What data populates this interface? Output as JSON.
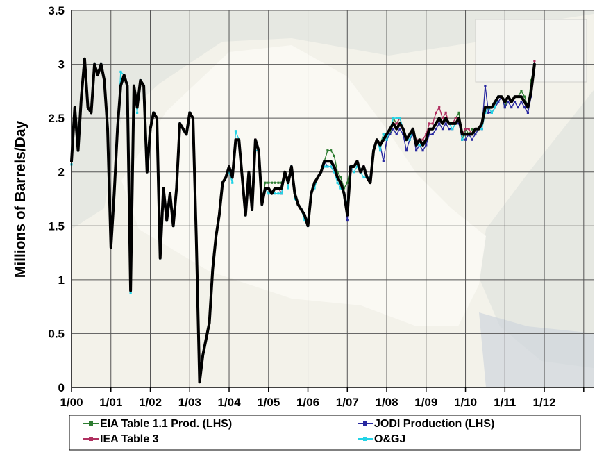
{
  "chart_data": {
    "type": "line",
    "title": "",
    "xlabel": "",
    "ylabel": "Millions of Barrels/Day",
    "ylim": [
      0,
      3.5
    ],
    "yticks": [
      "0",
      "0.5",
      "1",
      "1.5",
      "2",
      "2.5",
      "3",
      "3.5"
    ],
    "xticks": [
      "1/00",
      "1/01",
      "1/02",
      "1/03",
      "1/04",
      "1/05",
      "1/06",
      "1/07",
      "1/08",
      "1/09",
      "1/10",
      "1/11",
      "1/12"
    ],
    "xlim_years": [
      2000.0,
      2013.25
    ],
    "grid": true,
    "background_image": "faded map of Iraq oil infrastructure",
    "legend_position": "bottom",
    "series": [
      {
        "name": "EIA Table 1.1 Prod. (LHS)",
        "color": "#2e7d32",
        "start": 2000.0,
        "values": [
          2.1,
          2.6,
          2.2,
          2.7,
          3.05,
          2.6,
          2.55,
          3.0,
          2.9,
          3.0,
          2.85,
          2.4,
          1.3,
          1.8,
          2.4,
          2.8,
          2.9,
          2.8,
          0.9,
          2.8,
          2.6,
          2.85,
          2.8,
          2.0,
          2.4,
          2.55,
          2.5,
          1.2,
          1.85,
          1.55,
          1.8,
          1.5,
          1.85,
          2.45,
          2.4,
          2.35,
          2.55,
          2.5,
          1.4,
          0.05,
          0.3,
          0.45,
          0.6,
          1.1,
          1.4,
          1.6,
          1.9,
          1.95,
          2.05,
          1.95,
          2.3,
          2.3,
          1.95,
          1.6,
          2.0,
          1.65,
          2.3,
          2.2,
          1.7,
          1.9,
          1.9,
          1.9,
          1.9,
          1.9,
          1.9,
          2.0,
          1.9,
          2.05,
          1.8,
          1.7,
          1.65,
          1.6,
          1.5,
          1.8,
          1.9,
          1.95,
          2.0,
          2.1,
          2.2,
          2.2,
          2.15,
          2.0,
          1.95,
          1.85,
          1.9,
          2.05,
          2.05,
          2.1,
          2.0,
          2.05,
          1.95,
          1.9,
          2.2,
          2.3,
          2.25,
          2.35,
          2.3,
          2.35,
          2.5,
          2.45,
          2.5,
          2.4,
          2.3,
          2.35,
          2.4,
          2.25,
          2.3,
          2.25,
          2.3,
          2.4,
          2.4,
          2.45,
          2.5,
          2.45,
          2.5,
          2.45,
          2.45,
          2.5,
          2.55,
          2.3,
          2.4,
          2.35,
          2.4,
          2.35,
          2.4,
          2.45,
          2.55,
          2.6,
          2.55,
          2.6,
          2.7,
          2.7,
          2.6,
          2.7,
          2.65,
          2.7,
          2.7,
          2.75,
          2.7,
          2.6,
          2.85,
          3.0
        ]
      },
      {
        "name": "JODI Production (LHS)",
        "color": "#2828a0",
        "start": 2000.0,
        "values": [
          2.1,
          2.6,
          2.2,
          2.7,
          3.05,
          2.6,
          2.55,
          3.0,
          2.9,
          3.0,
          2.85,
          2.4,
          1.3,
          1.8,
          2.4,
          2.8,
          2.9,
          2.8,
          0.9,
          2.8,
          2.6,
          2.85,
          2.8,
          2.0,
          2.4,
          2.55,
          2.5,
          1.2,
          1.85,
          1.55,
          1.8,
          1.5,
          1.85,
          2.45,
          2.4,
          2.35,
          2.55,
          2.5,
          1.4,
          0.05,
          0.3,
          0.45,
          0.6,
          1.1,
          1.4,
          1.6,
          1.9,
          1.95,
          2.05,
          1.95,
          2.3,
          2.3,
          1.95,
          1.6,
          2.0,
          1.65,
          2.3,
          2.2,
          1.7,
          1.85,
          1.85,
          1.8,
          1.85,
          1.85,
          1.8,
          2.0,
          1.9,
          2.05,
          1.8,
          1.7,
          1.65,
          1.6,
          1.5,
          1.8,
          1.9,
          1.95,
          2.0,
          2.1,
          2.05,
          2.05,
          2.0,
          1.95,
          1.9,
          1.8,
          1.55,
          2.05,
          2.05,
          2.1,
          2.0,
          2.05,
          1.95,
          1.95,
          2.2,
          2.3,
          2.25,
          2.1,
          2.3,
          2.35,
          2.4,
          2.35,
          2.4,
          2.35,
          2.2,
          2.3,
          2.35,
          2.2,
          2.25,
          2.2,
          2.25,
          2.35,
          2.35,
          2.4,
          2.45,
          2.4,
          2.45,
          2.4,
          2.4,
          2.45,
          2.45,
          2.3,
          2.3,
          2.35,
          2.3,
          2.35,
          2.4,
          2.4,
          2.8,
          2.55,
          2.55,
          2.6,
          2.65,
          2.7,
          2.6,
          2.65,
          2.6,
          2.65,
          2.6,
          2.65,
          2.6,
          2.55,
          2.7,
          3.0
        ]
      },
      {
        "name": "IEA Table 3",
        "color": "#b03060",
        "start": 2000.0,
        "values": [
          2.1,
          2.6,
          2.2,
          2.7,
          3.05,
          2.6,
          2.55,
          3.0,
          2.9,
          3.0,
          2.85,
          2.4,
          1.3,
          1.8,
          2.4,
          2.8,
          2.9,
          2.8,
          0.9,
          2.8,
          2.6,
          2.85,
          2.8,
          2.0,
          2.4,
          2.55,
          2.5,
          1.2,
          1.85,
          1.55,
          1.8,
          1.5,
          1.85,
          2.45,
          2.4,
          2.35,
          2.55,
          2.5,
          1.4,
          0.05,
          0.3,
          0.45,
          0.6,
          1.1,
          1.4,
          1.6,
          1.9,
          1.95,
          2.05,
          1.95,
          2.3,
          2.3,
          1.95,
          1.6,
          2.0,
          1.65,
          2.3,
          2.2,
          1.7,
          1.85,
          1.85,
          1.8,
          1.85,
          1.85,
          1.8,
          2.0,
          1.9,
          2.05,
          1.8,
          1.7,
          1.65,
          1.6,
          1.5,
          1.8,
          1.9,
          1.95,
          2.0,
          2.1,
          2.1,
          2.1,
          2.05,
          1.95,
          1.9,
          1.8,
          1.6,
          2.0,
          2.05,
          2.1,
          2.0,
          2.05,
          1.95,
          1.95,
          2.2,
          2.3,
          2.25,
          2.3,
          2.35,
          2.4,
          2.45,
          2.45,
          2.5,
          2.4,
          2.3,
          2.35,
          2.4,
          2.3,
          2.3,
          2.3,
          2.35,
          2.45,
          2.45,
          2.55,
          2.6,
          2.5,
          2.55,
          2.45,
          2.45,
          2.5,
          2.5,
          2.35,
          2.4,
          2.4,
          2.35,
          2.4,
          2.4,
          2.45,
          2.6,
          2.6,
          2.6,
          2.65,
          2.7,
          2.7,
          2.65,
          2.7,
          2.65,
          2.7,
          2.7,
          2.7,
          2.65,
          2.6,
          2.75,
          3.03
        ]
      },
      {
        "name": "O&GJ",
        "color": "#22d3e6",
        "start": 2000.0,
        "values": [
          2.07,
          2.6,
          2.2,
          2.7,
          3.05,
          2.6,
          2.55,
          3.0,
          2.9,
          3.0,
          2.85,
          2.4,
          1.3,
          1.8,
          2.4,
          2.93,
          2.9,
          2.8,
          0.88,
          2.8,
          2.55,
          2.85,
          2.8,
          2.0,
          2.4,
          2.55,
          2.5,
          1.2,
          1.85,
          1.55,
          1.8,
          1.5,
          1.85,
          2.45,
          2.4,
          2.35,
          2.55,
          2.5,
          1.4,
          0.05,
          0.3,
          0.45,
          0.6,
          1.1,
          1.4,
          1.6,
          1.9,
          1.95,
          2.0,
          1.9,
          2.38,
          2.3,
          1.95,
          1.6,
          2.0,
          1.65,
          2.2,
          2.2,
          1.7,
          1.85,
          1.8,
          1.8,
          1.8,
          1.8,
          1.8,
          2.0,
          1.85,
          2.05,
          1.75,
          1.7,
          1.65,
          1.55,
          1.5,
          1.8,
          1.85,
          1.95,
          2.0,
          2.05,
          2.05,
          2.05,
          2.0,
          1.9,
          1.85,
          1.8,
          1.7,
          2.05,
          2.0,
          2.05,
          2.0,
          1.95,
          1.95,
          1.95,
          2.2,
          2.3,
          2.2,
          2.35,
          2.3,
          2.4,
          2.5,
          2.5,
          2.5,
          2.4,
          2.3,
          2.3,
          2.4,
          2.25,
          2.25,
          2.25,
          2.3,
          2.4,
          2.4,
          2.45,
          2.5,
          2.45,
          2.5,
          2.45,
          2.4,
          2.45,
          2.5,
          2.3,
          2.35,
          2.35,
          2.35,
          2.4,
          2.4,
          2.4,
          2.55,
          2.6,
          2.55,
          2.6,
          2.7,
          2.7,
          2.65,
          2.7,
          2.65,
          2.7,
          2.7,
          2.7,
          2.65,
          2.6,
          2.75,
          3.0
        ]
      },
      {
        "name": "",
        "color": "#000000",
        "start": 2000.0,
        "values": [
          2.1,
          2.6,
          2.2,
          2.7,
          3.05,
          2.6,
          2.55,
          3.0,
          2.9,
          3.0,
          2.85,
          2.4,
          1.3,
          1.8,
          2.4,
          2.8,
          2.9,
          2.8,
          0.9,
          2.8,
          2.6,
          2.85,
          2.8,
          2.0,
          2.4,
          2.55,
          2.5,
          1.2,
          1.85,
          1.55,
          1.8,
          1.5,
          1.85,
          2.45,
          2.4,
          2.35,
          2.55,
          2.5,
          1.4,
          0.05,
          0.3,
          0.45,
          0.6,
          1.1,
          1.4,
          1.6,
          1.9,
          1.95,
          2.05,
          1.95,
          2.3,
          2.3,
          1.95,
          1.6,
          2.0,
          1.65,
          2.3,
          2.2,
          1.7,
          1.85,
          1.85,
          1.8,
          1.85,
          1.85,
          1.85,
          2.0,
          1.9,
          2.05,
          1.8,
          1.7,
          1.65,
          1.6,
          1.5,
          1.8,
          1.9,
          1.95,
          2.0,
          2.1,
          2.1,
          2.1,
          2.05,
          1.95,
          1.9,
          1.8,
          1.6,
          2.05,
          2.05,
          2.1,
          2.0,
          2.05,
          1.95,
          1.9,
          2.2,
          2.3,
          2.25,
          2.3,
          2.35,
          2.4,
          2.45,
          2.4,
          2.45,
          2.4,
          2.3,
          2.35,
          2.4,
          2.25,
          2.3,
          2.25,
          2.3,
          2.4,
          2.4,
          2.45,
          2.5,
          2.45,
          2.5,
          2.45,
          2.45,
          2.45,
          2.5,
          2.35,
          2.35,
          2.35,
          2.35,
          2.4,
          2.4,
          2.45,
          2.6,
          2.6,
          2.6,
          2.65,
          2.7,
          2.7,
          2.65,
          2.7,
          2.65,
          2.7,
          2.7,
          2.7,
          2.65,
          2.6,
          2.75,
          3.0
        ]
      }
    ]
  }
}
